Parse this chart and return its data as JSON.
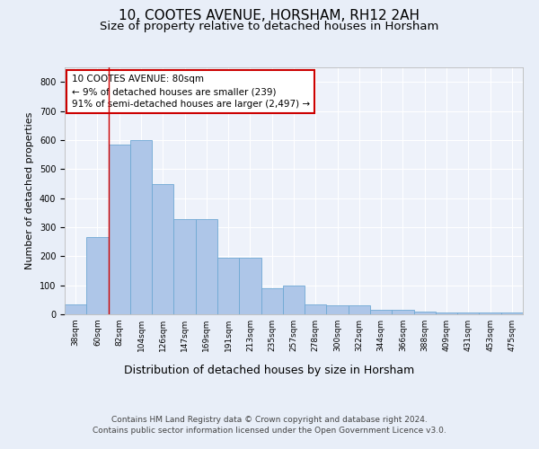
{
  "title": "10, COOTES AVENUE, HORSHAM, RH12 2AH",
  "subtitle": "Size of property relative to detached houses in Horsham",
  "xlabel": "Distribution of detached houses by size in Horsham",
  "ylabel": "Number of detached properties",
  "categories": [
    "38sqm",
    "60sqm",
    "82sqm",
    "104sqm",
    "126sqm",
    "147sqm",
    "169sqm",
    "191sqm",
    "213sqm",
    "235sqm",
    "257sqm",
    "278sqm",
    "300sqm",
    "322sqm",
    "344sqm",
    "366sqm",
    "388sqm",
    "409sqm",
    "431sqm",
    "453sqm",
    "475sqm"
  ],
  "values": [
    35,
    265,
    585,
    600,
    448,
    328,
    328,
    195,
    195,
    90,
    100,
    35,
    30,
    30,
    15,
    15,
    10,
    5,
    5,
    5,
    7
  ],
  "bar_color": "#aec6e8",
  "bar_edge_color": "#6fa8d4",
  "background_color": "#e8eef8",
  "plot_bg_color": "#eef2fa",
  "annotation_text": "10 COOTES AVENUE: 80sqm\n← 9% of detached houses are smaller (239)\n91% of semi-detached houses are larger (2,497) →",
  "annotation_box_color": "#ffffff",
  "annotation_box_edge": "#cc0000",
  "vline_color": "#cc0000",
  "ylim": [
    0,
    850
  ],
  "yticks": [
    0,
    100,
    200,
    300,
    400,
    500,
    600,
    700,
    800
  ],
  "footer_line1": "Contains HM Land Registry data © Crown copyright and database right 2024.",
  "footer_line2": "Contains public sector information licensed under the Open Government Licence v3.0.",
  "title_fontsize": 11,
  "subtitle_fontsize": 9.5,
  "tick_fontsize": 7,
  "ylabel_fontsize": 8,
  "xlabel_fontsize": 9
}
